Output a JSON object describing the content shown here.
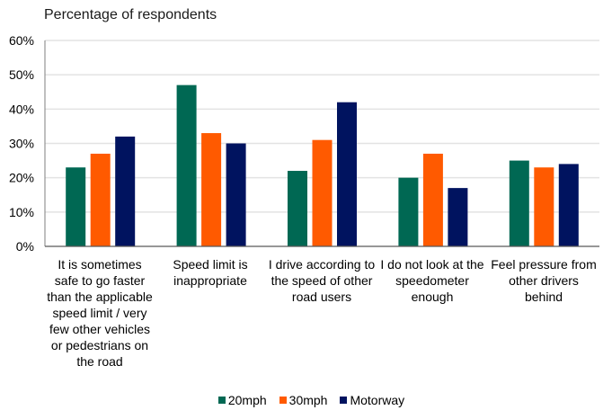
{
  "chart_data": {
    "type": "bar",
    "title": "Percentage of respondents",
    "xlabel": "",
    "ylabel": "Percentage of respondents",
    "ylim": [
      0,
      60
    ],
    "yticks": [
      "0%",
      "10%",
      "20%",
      "30%",
      "40%",
      "50%",
      "60%"
    ],
    "ytick_values": [
      0,
      10,
      20,
      30,
      40,
      50,
      60
    ],
    "grid": true,
    "legend_position": "bottom",
    "categories": [
      "It is sometimes safe to go faster than the applicable speed limit / very few other vehicles or pedestrians on the road",
      "Speed limit is inappropriate",
      "I drive according to the speed of other road users",
      "I do not look at the speedometer enough",
      "Feel pressure from other drivers behind"
    ],
    "series": [
      {
        "name": "20mph",
        "color": "#006853",
        "values": [
          23,
          47,
          22,
          20,
          25
        ]
      },
      {
        "name": "30mph",
        "color": "#ff5a00",
        "values": [
          27,
          33,
          31,
          27,
          23
        ]
      },
      {
        "name": "Motorway",
        "color": "#00135f",
        "values": [
          32,
          30,
          42,
          17,
          24
        ]
      }
    ]
  },
  "category_labels": [
    "It is sometimes safe to go faster than the applicable speed limit / very few other vehicles or pedestrians on the road",
    "Speed limit is inappropriate",
    "I drive according to the speed of other road users",
    "I do not look at the speedometer enough",
    "Feel pressure from other drivers behind"
  ]
}
